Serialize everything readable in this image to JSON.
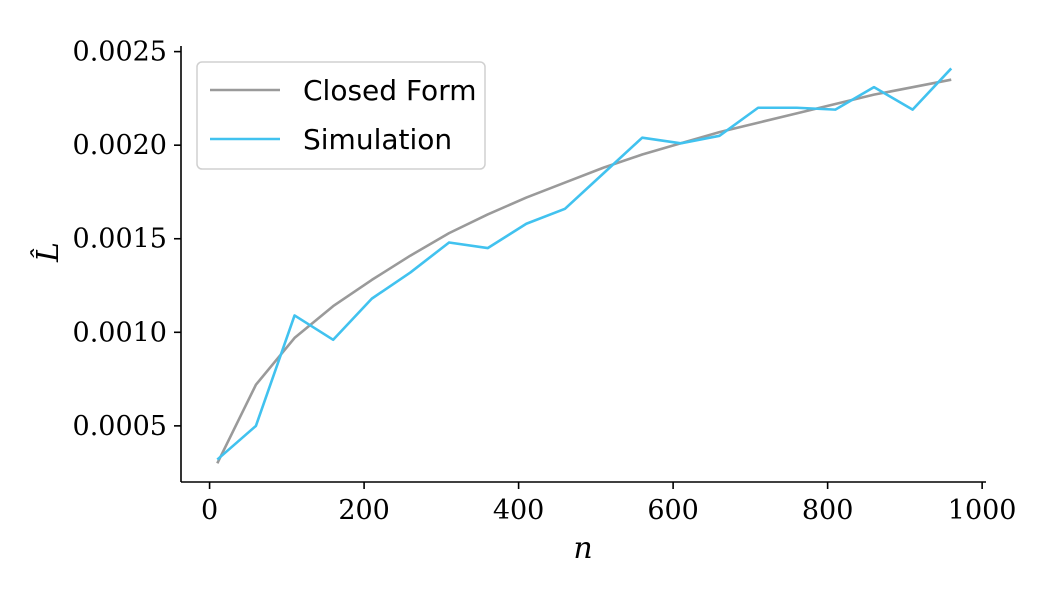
{
  "chart_data": {
    "type": "line",
    "xlabel": "n",
    "ylabel": "L̂",
    "xlim": [
      -37,
      1005
    ],
    "ylim": [
      0.0002,
      0.00253
    ],
    "xticks": [
      0,
      200,
      400,
      600,
      800,
      1000
    ],
    "xtick_labels": [
      "0",
      "200",
      "400",
      "600",
      "800",
      "1000"
    ],
    "yticks": [
      0.0005,
      0.001,
      0.0015,
      0.002,
      0.0025
    ],
    "ytick_labels": [
      "0.0005",
      "0.0010",
      "0.0015",
      "0.0020",
      "0.0025"
    ],
    "grid": false,
    "legend_position": "upper-left",
    "series": [
      {
        "name": "Closed Form",
        "color": "#9a9a9a",
        "x": [
          10,
          60,
          110,
          160,
          210,
          260,
          310,
          360,
          410,
          460,
          510,
          560,
          610,
          660,
          710,
          760,
          810,
          860,
          910,
          960
        ],
        "y": [
          0.0003,
          0.00072,
          0.00097,
          0.00114,
          0.00128,
          0.00141,
          0.00153,
          0.00163,
          0.00172,
          0.0018,
          0.00188,
          0.00195,
          0.00201,
          0.00207,
          0.00212,
          0.00217,
          0.00222,
          0.00227,
          0.00231,
          0.00235
        ]
      },
      {
        "name": "Simulation",
        "color": "#41c2ef",
        "x": [
          10,
          60,
          110,
          160,
          210,
          260,
          310,
          360,
          410,
          460,
          510,
          560,
          610,
          660,
          710,
          760,
          810,
          860,
          910,
          960
        ],
        "y": [
          0.00032,
          0.0005,
          0.00109,
          0.00096,
          0.00118,
          0.00132,
          0.00148,
          0.00145,
          0.00158,
          0.00166,
          0.00185,
          0.00204,
          0.00201,
          0.00205,
          0.0022,
          0.0022,
          0.00219,
          0.00231,
          0.00219,
          0.00241
        ]
      }
    ]
  }
}
